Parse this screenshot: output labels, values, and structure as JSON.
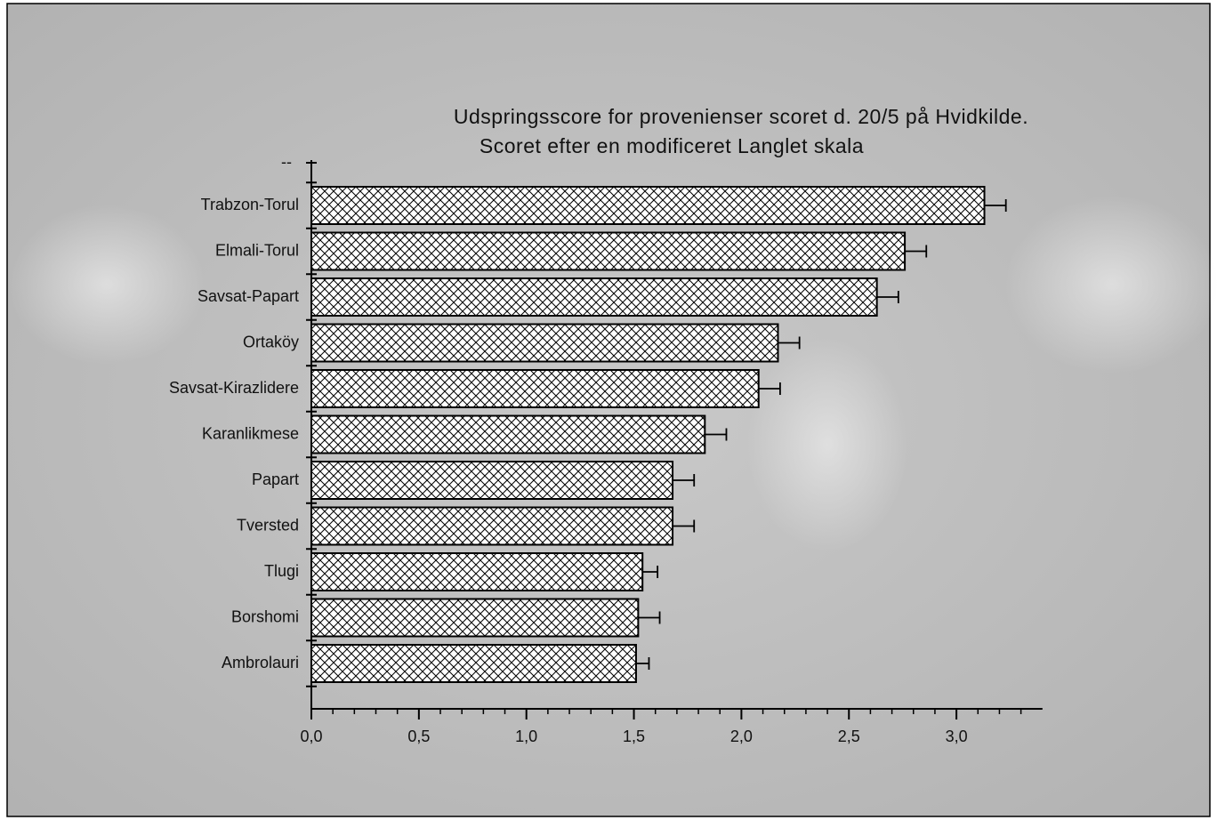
{
  "chart_data": {
    "type": "bar",
    "orientation": "horizontal",
    "title": "Udspringsscore for provenienser scoret d. 20/5 på Hvidkilde.",
    "subtitle": "Scoret efter en modificeret Langlet skala",
    "y_top_label": "--",
    "categories": [
      "Trabzon-Torul",
      "Elmali-Torul",
      "Savsat-Papart",
      "Ortaköy",
      "Savsat-Kirazlidere",
      "Karanlikmese",
      "Papart",
      "Tversted",
      "Tlugi",
      "Borshomi",
      "Ambrolauri"
    ],
    "values": [
      3.13,
      2.76,
      2.63,
      2.17,
      2.08,
      1.83,
      1.68,
      1.68,
      1.54,
      1.52,
      1.51
    ],
    "errors": [
      0.1,
      0.1,
      0.1,
      0.1,
      0.1,
      0.1,
      0.1,
      0.1,
      0.07,
      0.1,
      0.06
    ],
    "color": "#000000",
    "xlim": [
      0,
      3.4
    ],
    "xticks": [
      {
        "value": 0,
        "label": "0,0"
      },
      {
        "value": 0.5,
        "label": "0,5"
      },
      {
        "value": 1,
        "label": "1,0"
      },
      {
        "value": 1.5,
        "label": "1,5"
      },
      {
        "value": 2,
        "label": "2,0"
      },
      {
        "value": 2.5,
        "label": "2,5"
      },
      {
        "value": 3,
        "label": "3,0"
      }
    ],
    "xminorticks": [
      0.1,
      0.2,
      0.3,
      0.4,
      0.6,
      0.7,
      0.8,
      0.9,
      1.1,
      1.2,
      1.3,
      1.4,
      1.6,
      1.7,
      1.8,
      1.9,
      2.1,
      2.2,
      2.3,
      2.4,
      2.6,
      2.7,
      2.8,
      2.9,
      3.1,
      3.2,
      3.3
    ]
  }
}
